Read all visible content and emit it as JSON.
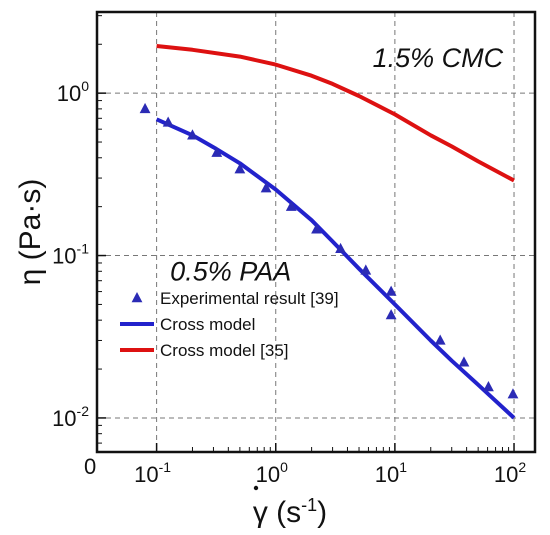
{
  "chart_data": {
    "type": "line",
    "x_scale": "log",
    "y_scale": "log",
    "xlim": [
      0.0316,
      150
    ],
    "ylim": [
      0.00617,
      3.16
    ],
    "grid": true,
    "grid_style": "dashed",
    "origin_label": "0",
    "x_axis_title": {
      "symbol": "γ",
      "text": " (s",
      "sup": "-1",
      "close": ")"
    },
    "y_axis_title": "η (Pa·s)",
    "x_ticks": [
      {
        "value": 0.1,
        "base": "10",
        "exp": "-1"
      },
      {
        "value": 1,
        "base": "10",
        "exp": "0"
      },
      {
        "value": 10,
        "base": "10",
        "exp": "1"
      },
      {
        "value": 100,
        "base": "10",
        "exp": "2"
      }
    ],
    "y_ticks": [
      {
        "value": 1,
        "base": "10",
        "exp": "0"
      },
      {
        "value": 0.1,
        "base": "10",
        "exp": "-1"
      },
      {
        "value": 0.01,
        "base": "10",
        "exp": "-2"
      }
    ],
    "annotations": [
      {
        "text": "1.5% CMC",
        "x": 6.5,
        "y": 1.45
      },
      {
        "text": "0.5% PAA",
        "x": 0.13,
        "y": 0.07
      }
    ],
    "series": [
      {
        "name": "Experimental result [39]",
        "kind": "marker",
        "marker": "triangle",
        "color": "#2b2bb5",
        "x": [
          0.08,
          0.125,
          0.2,
          0.32,
          0.5,
          0.83,
          1.35,
          2.2,
          3.5,
          5.7,
          9.3,
          9.3,
          24,
          38,
          61,
          98
        ],
        "y": [
          0.8,
          0.66,
          0.55,
          0.43,
          0.34,
          0.26,
          0.2,
          0.145,
          0.11,
          0.081,
          0.06,
          0.043,
          0.03,
          0.022,
          0.0155,
          0.014
        ]
      },
      {
        "name": "Cross model",
        "kind": "line",
        "color": "#2222cc",
        "x": [
          0.1,
          0.2,
          0.3,
          0.5,
          1,
          2,
          3,
          5,
          10,
          20,
          30,
          50,
          100
        ],
        "y": [
          0.69,
          0.55,
          0.465,
          0.37,
          0.255,
          0.165,
          0.122,
          0.083,
          0.05,
          0.03,
          0.0225,
          0.016,
          0.01
        ]
      },
      {
        "name": "Cross model [35]",
        "kind": "line",
        "color": "#dd1111",
        "x": [
          0.1,
          0.2,
          0.5,
          1,
          2,
          3,
          5,
          10,
          20,
          30,
          50,
          100
        ],
        "y": [
          1.95,
          1.85,
          1.68,
          1.5,
          1.28,
          1.14,
          0.96,
          0.74,
          0.55,
          0.47,
          0.38,
          0.29
        ]
      }
    ],
    "legend": {
      "position": "lower-left",
      "entries": [
        "Experimental result [39]",
        "Cross model",
        "Cross model [35]"
      ]
    }
  }
}
